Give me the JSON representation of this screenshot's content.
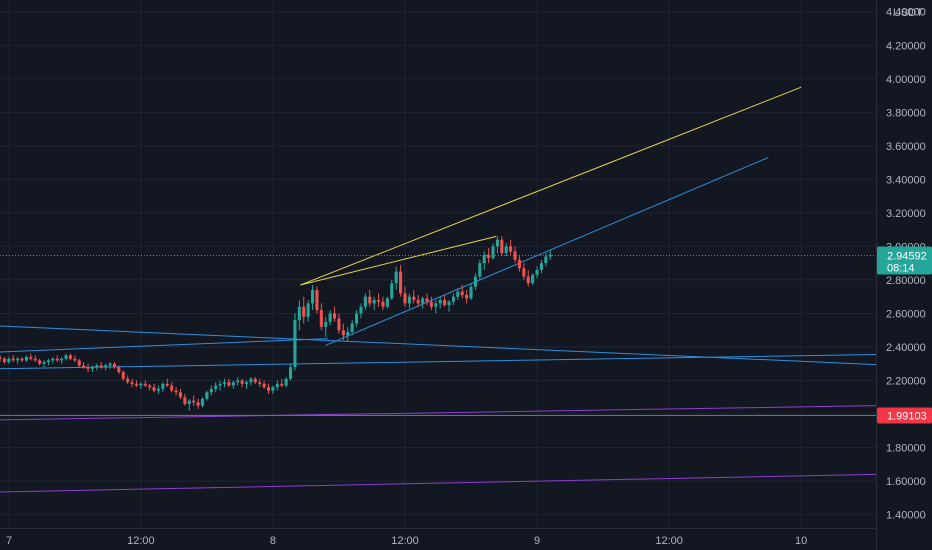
{
  "chart_data": {
    "type": "candlestick",
    "currency": "USDT",
    "y_ticks": [
      "4.40000",
      "4.20000",
      "4.00000",
      "3.80000",
      "3.60000",
      "3.40000",
      "3.20000",
      "3.00000",
      "2.80000",
      "2.60000",
      "2.40000",
      "2.20000",
      "2.00000",
      "1.80000",
      "1.60000",
      "1.40000"
    ],
    "ylim": [
      1.32,
      4.47
    ],
    "x_ticks": [
      "7",
      "12:00",
      "8",
      "12:00",
      "9",
      "12:00",
      "10"
    ],
    "x_tick_values": [
      0,
      12,
      24,
      36,
      48,
      60,
      72
    ],
    "xlim": [
      -0.8,
      78.8
    ],
    "x_unit": "hours from day 7 00:00",
    "last_price": {
      "value": 2.94592,
      "label": "2.94592",
      "countdown": "08:14",
      "color": "#26a69a"
    },
    "level": {
      "value": 1.99103,
      "label": "1.99103",
      "color": "#f23645"
    },
    "grid": true,
    "colors": {
      "up": "#26a69a",
      "down": "#ef5350",
      "background": "#131722",
      "grid": "#1f2433"
    },
    "candles": [
      [
        -0.8,
        2.34,
        2.35,
        2.31,
        2.33
      ],
      [
        -0.4,
        2.33,
        2.34,
        2.3,
        2.31
      ],
      [
        0.0,
        2.31,
        2.34,
        2.3,
        2.33
      ],
      [
        0.4,
        2.33,
        2.35,
        2.31,
        2.32
      ],
      [
        0.8,
        2.32,
        2.34,
        2.3,
        2.33
      ],
      [
        1.2,
        2.33,
        2.34,
        2.31,
        2.32
      ],
      [
        1.6,
        2.32,
        2.35,
        2.31,
        2.34
      ],
      [
        2.0,
        2.34,
        2.36,
        2.32,
        2.33
      ],
      [
        2.4,
        2.33,
        2.35,
        2.31,
        2.32
      ],
      [
        2.8,
        2.32,
        2.33,
        2.29,
        2.3
      ],
      [
        3.2,
        2.3,
        2.32,
        2.28,
        2.31
      ],
      [
        3.6,
        2.31,
        2.33,
        2.29,
        2.32
      ],
      [
        4.0,
        2.32,
        2.34,
        2.3,
        2.33
      ],
      [
        4.4,
        2.33,
        2.35,
        2.31,
        2.32
      ],
      [
        4.8,
        2.32,
        2.34,
        2.3,
        2.33
      ],
      [
        5.2,
        2.33,
        2.36,
        2.32,
        2.35
      ],
      [
        5.6,
        2.35,
        2.36,
        2.32,
        2.33
      ],
      [
        6.0,
        2.33,
        2.35,
        2.31,
        2.32
      ],
      [
        6.4,
        2.32,
        2.33,
        2.28,
        2.29
      ],
      [
        6.8,
        2.29,
        2.31,
        2.27,
        2.28
      ],
      [
        7.2,
        2.28,
        2.3,
        2.25,
        2.27
      ],
      [
        7.6,
        2.27,
        2.29,
        2.25,
        2.28
      ],
      [
        8.0,
        2.28,
        2.3,
        2.26,
        2.29
      ],
      [
        8.4,
        2.29,
        2.31,
        2.27,
        2.28
      ],
      [
        8.8,
        2.28,
        2.3,
        2.26,
        2.29
      ],
      [
        9.2,
        2.29,
        2.31,
        2.27,
        2.3
      ],
      [
        9.6,
        2.3,
        2.31,
        2.27,
        2.28
      ],
      [
        10.0,
        2.28,
        2.29,
        2.24,
        2.25
      ],
      [
        10.4,
        2.25,
        2.26,
        2.2,
        2.21
      ],
      [
        10.8,
        2.21,
        2.23,
        2.18,
        2.19
      ],
      [
        11.2,
        2.19,
        2.21,
        2.16,
        2.18
      ],
      [
        11.6,
        2.18,
        2.2,
        2.16,
        2.17
      ],
      [
        12.0,
        2.17,
        2.19,
        2.15,
        2.18
      ],
      [
        12.4,
        2.18,
        2.2,
        2.16,
        2.17
      ],
      [
        12.8,
        2.17,
        2.18,
        2.14,
        2.16
      ],
      [
        13.2,
        2.16,
        2.18,
        2.13,
        2.14
      ],
      [
        13.6,
        2.14,
        2.17,
        2.12,
        2.15
      ],
      [
        14.0,
        2.15,
        2.19,
        2.13,
        2.18
      ],
      [
        14.4,
        2.18,
        2.21,
        2.16,
        2.17
      ],
      [
        14.8,
        2.17,
        2.19,
        2.13,
        2.14
      ],
      [
        15.2,
        2.14,
        2.16,
        2.11,
        2.13
      ],
      [
        15.6,
        2.13,
        2.15,
        2.09,
        2.1
      ],
      [
        16.0,
        2.1,
        2.12,
        2.05,
        2.06
      ],
      [
        16.4,
        2.06,
        2.09,
        2.02,
        2.08
      ],
      [
        16.8,
        2.08,
        2.11,
        2.05,
        2.07
      ],
      [
        17.2,
        2.07,
        2.09,
        2.03,
        2.05
      ],
      [
        17.6,
        2.05,
        2.1,
        2.04,
        2.09
      ],
      [
        18.0,
        2.09,
        2.14,
        2.08,
        2.13
      ],
      [
        18.4,
        2.13,
        2.17,
        2.11,
        2.15
      ],
      [
        18.8,
        2.15,
        2.19,
        2.13,
        2.17
      ],
      [
        19.2,
        2.17,
        2.2,
        2.14,
        2.18
      ],
      [
        19.6,
        2.18,
        2.21,
        2.16,
        2.19
      ],
      [
        20.0,
        2.19,
        2.21,
        2.16,
        2.17
      ],
      [
        20.4,
        2.17,
        2.2,
        2.15,
        2.19
      ],
      [
        20.8,
        2.19,
        2.22,
        2.17,
        2.2
      ],
      [
        21.2,
        2.2,
        2.21,
        2.16,
        2.18
      ],
      [
        21.6,
        2.18,
        2.2,
        2.15,
        2.19
      ],
      [
        22.0,
        2.19,
        2.22,
        2.17,
        2.21
      ],
      [
        22.4,
        2.21,
        2.22,
        2.18,
        2.19
      ],
      [
        22.8,
        2.19,
        2.21,
        2.16,
        2.18
      ],
      [
        23.2,
        2.18,
        2.2,
        2.15,
        2.16
      ],
      [
        23.6,
        2.16,
        2.18,
        2.12,
        2.14
      ],
      [
        24.0,
        2.14,
        2.17,
        2.12,
        2.16
      ],
      [
        24.4,
        2.16,
        2.2,
        2.14,
        2.18
      ],
      [
        24.8,
        2.18,
        2.21,
        2.16,
        2.17
      ],
      [
        25.2,
        2.17,
        2.22,
        2.16,
        2.21
      ],
      [
        25.6,
        2.21,
        2.3,
        2.2,
        2.28
      ],
      [
        26.0,
        2.28,
        2.6,
        2.26,
        2.56
      ],
      [
        26.4,
        2.56,
        2.68,
        2.5,
        2.64
      ],
      [
        26.8,
        2.64,
        2.7,
        2.54,
        2.58
      ],
      [
        27.2,
        2.58,
        2.68,
        2.55,
        2.66
      ],
      [
        27.6,
        2.66,
        2.77,
        2.62,
        2.74
      ],
      [
        28.0,
        2.74,
        2.76,
        2.6,
        2.62
      ],
      [
        28.4,
        2.62,
        2.66,
        2.5,
        2.52
      ],
      [
        28.8,
        2.52,
        2.58,
        2.46,
        2.55
      ],
      [
        29.2,
        2.55,
        2.62,
        2.53,
        2.6
      ],
      [
        29.6,
        2.6,
        2.64,
        2.55,
        2.57
      ],
      [
        30.0,
        2.57,
        2.6,
        2.48,
        2.5
      ],
      [
        30.4,
        2.5,
        2.54,
        2.44,
        2.47
      ],
      [
        30.8,
        2.47,
        2.52,
        2.43,
        2.49
      ],
      [
        31.2,
        2.49,
        2.56,
        2.47,
        2.54
      ],
      [
        31.6,
        2.54,
        2.62,
        2.52,
        2.6
      ],
      [
        32.0,
        2.6,
        2.66,
        2.57,
        2.64
      ],
      [
        32.4,
        2.64,
        2.72,
        2.62,
        2.7
      ],
      [
        32.8,
        2.7,
        2.74,
        2.64,
        2.66
      ],
      [
        33.2,
        2.66,
        2.7,
        2.62,
        2.68
      ],
      [
        33.6,
        2.68,
        2.72,
        2.64,
        2.67
      ],
      [
        34.0,
        2.67,
        2.7,
        2.62,
        2.64
      ],
      [
        34.4,
        2.64,
        2.7,
        2.63,
        2.69
      ],
      [
        34.8,
        2.69,
        2.8,
        2.68,
        2.78
      ],
      [
        35.2,
        2.78,
        2.88,
        2.74,
        2.85
      ],
      [
        35.6,
        2.85,
        2.89,
        2.7,
        2.72
      ],
      [
        36.0,
        2.72,
        2.76,
        2.64,
        2.66
      ],
      [
        36.4,
        2.66,
        2.72,
        2.63,
        2.7
      ],
      [
        36.8,
        2.7,
        2.74,
        2.66,
        2.68
      ],
      [
        37.2,
        2.68,
        2.71,
        2.64,
        2.66
      ],
      [
        37.6,
        2.66,
        2.7,
        2.63,
        2.69
      ],
      [
        38.0,
        2.69,
        2.72,
        2.65,
        2.67
      ],
      [
        38.4,
        2.67,
        2.7,
        2.62,
        2.64
      ],
      [
        38.8,
        2.64,
        2.68,
        2.6,
        2.66
      ],
      [
        39.2,
        2.66,
        2.7,
        2.63,
        2.68
      ],
      [
        39.6,
        2.68,
        2.71,
        2.64,
        2.65
      ],
      [
        40.0,
        2.65,
        2.68,
        2.61,
        2.67
      ],
      [
        40.4,
        2.67,
        2.72,
        2.65,
        2.7
      ],
      [
        40.8,
        2.7,
        2.75,
        2.68,
        2.73
      ],
      [
        41.2,
        2.73,
        2.77,
        2.69,
        2.71
      ],
      [
        41.6,
        2.71,
        2.74,
        2.66,
        2.69
      ],
      [
        42.0,
        2.69,
        2.78,
        2.68,
        2.76
      ],
      [
        42.4,
        2.76,
        2.84,
        2.74,
        2.82
      ],
      [
        42.8,
        2.82,
        2.92,
        2.8,
        2.9
      ],
      [
        43.2,
        2.9,
        2.97,
        2.86,
        2.95
      ],
      [
        43.6,
        2.95,
        2.99,
        2.9,
        2.93
      ],
      [
        44.0,
        2.93,
        3.02,
        2.92,
        3.0
      ],
      [
        44.4,
        3.0,
        3.06,
        2.96,
        3.04
      ],
      [
        44.8,
        3.04,
        3.06,
        2.94,
        2.96
      ],
      [
        45.2,
        2.96,
        3.02,
        2.94,
        3.0
      ],
      [
        45.6,
        3.0,
        3.04,
        2.95,
        2.97
      ],
      [
        46.0,
        2.97,
        3.0,
        2.9,
        2.92
      ],
      [
        46.4,
        2.92,
        2.95,
        2.85,
        2.87
      ],
      [
        46.8,
        2.87,
        2.9,
        2.8,
        2.82
      ],
      [
        47.2,
        2.82,
        2.86,
        2.76,
        2.78
      ],
      [
        47.6,
        2.78,
        2.84,
        2.77,
        2.83
      ],
      [
        48.0,
        2.83,
        2.88,
        2.81,
        2.86
      ],
      [
        48.4,
        2.86,
        2.92,
        2.84,
        2.9
      ],
      [
        48.8,
        2.9,
        2.96,
        2.88,
        2.94
      ],
      [
        49.2,
        2.94,
        2.98,
        2.92,
        2.95
      ]
    ],
    "trend_lines": [
      {
        "color": "#e6d44a",
        "width": 1.0,
        "p1": [
          26.5,
          2.77
        ],
        "p2": [
          72.0,
          3.95
        ]
      },
      {
        "color": "#e6d44a",
        "width": 1.0,
        "p1": [
          26.5,
          2.77
        ],
        "p2": [
          44.3,
          3.06
        ]
      },
      {
        "color": "#2f8fde",
        "width": 1.0,
        "p1": [
          28.8,
          2.41
        ],
        "p2": [
          69.0,
          3.53
        ]
      },
      {
        "color": "#2f8fde",
        "width": 1.0,
        "p1": [
          -0.8,
          2.525
        ],
        "p2": [
          78.8,
          2.295
        ]
      },
      {
        "color": "#2f8fde",
        "width": 1.0,
        "p1": [
          -0.8,
          2.27
        ],
        "p2": [
          78.8,
          2.355
        ]
      },
      {
        "color": "#2f8fde",
        "width": 1.0,
        "p1": [
          -0.8,
          2.37
        ],
        "p2": [
          29.0,
          2.45
        ]
      },
      {
        "color": "#8a3fd1",
        "width": 1.0,
        "p1": [
          -0.8,
          1.965
        ],
        "p2": [
          78.8,
          2.05
        ]
      },
      {
        "color": "#8a3fd1",
        "width": 1.0,
        "p1": [
          -0.8,
          1.535
        ],
        "p2": [
          78.8,
          1.64
        ]
      }
    ]
  }
}
